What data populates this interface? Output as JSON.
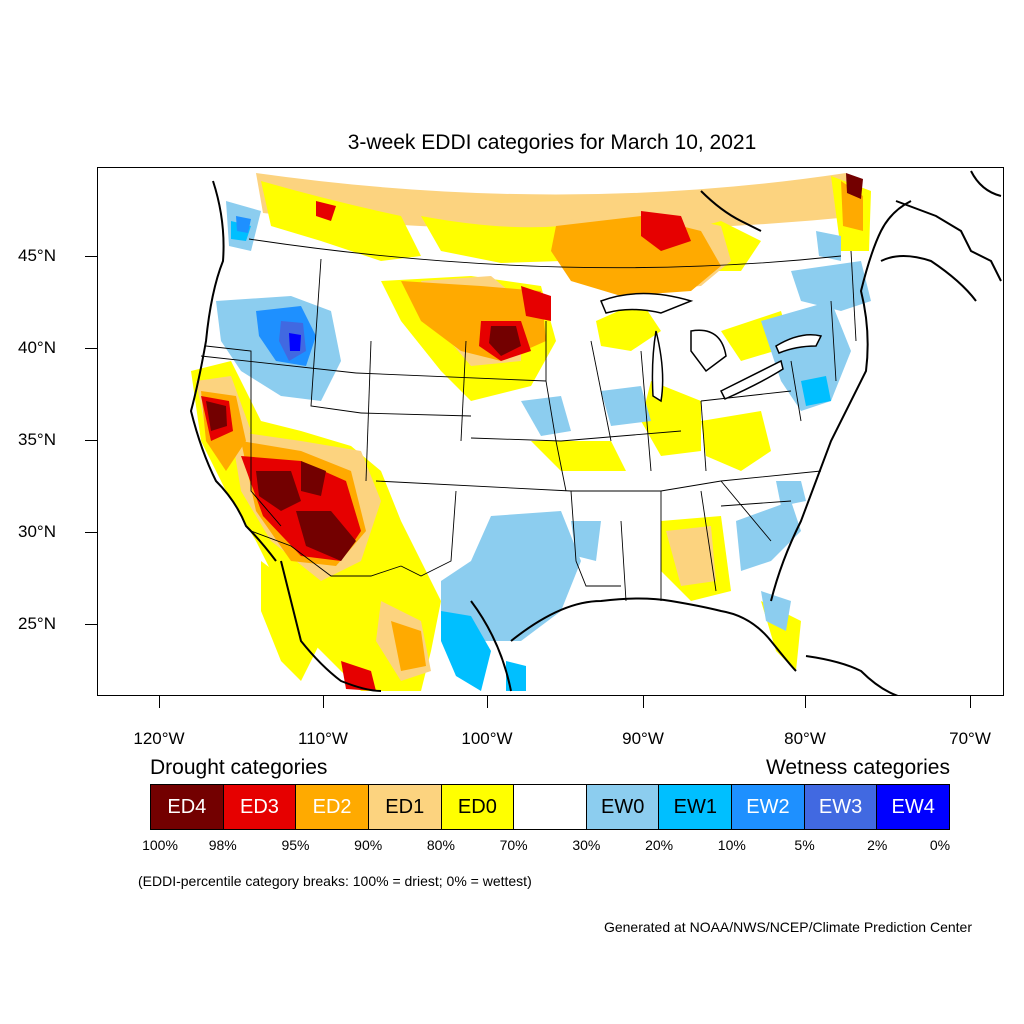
{
  "title": "3-week EDDI categories for March 10, 2021",
  "lat_labels": [
    "45°N",
    "40°N",
    "35°N",
    "30°N",
    "25°N"
  ],
  "lon_labels": [
    "120°W",
    "110°W",
    "100°W",
    "90°W",
    "80°W",
    "70°W"
  ],
  "legend": {
    "drought_heading": "Drought categories",
    "wetness_heading": "Wetness categories",
    "categories": [
      {
        "label": "ED4",
        "color": "#730000",
        "text_color": "#ffffff"
      },
      {
        "label": "ED3",
        "color": "#e60000",
        "text_color": "#ffffff"
      },
      {
        "label": "ED2",
        "color": "#ffaa00",
        "text_color": "#ffffff"
      },
      {
        "label": "ED1",
        "color": "#fcd37f",
        "text_color": "#000000"
      },
      {
        "label": "ED0",
        "color": "#ffff00",
        "text_color": "#000000"
      },
      {
        "label": "",
        "color": "#ffffff",
        "text_color": "#000000"
      },
      {
        "label": "EW0",
        "color": "#8ccdef",
        "text_color": "#000000"
      },
      {
        "label": "EW1",
        "color": "#00bfff",
        "text_color": "#000000"
      },
      {
        "label": "EW2",
        "color": "#1e90ff",
        "text_color": "#ffffff"
      },
      {
        "label": "EW3",
        "color": "#4169e1",
        "text_color": "#ffffff"
      },
      {
        "label": "EW4",
        "color": "#0000ff",
        "text_color": "#ffffff"
      }
    ],
    "breaks": [
      "100%",
      "98%",
      "95%",
      "90%",
      "80%",
      "70%",
      "30%",
      "20%",
      "10%",
      "5%",
      "2%",
      "0%"
    ]
  },
  "note": "(EDDI-percentile category breaks: 100% = driest; 0% = wettest)",
  "credit": "Generated at NOAA/NWS/NCEP/Climate Prediction Center"
}
